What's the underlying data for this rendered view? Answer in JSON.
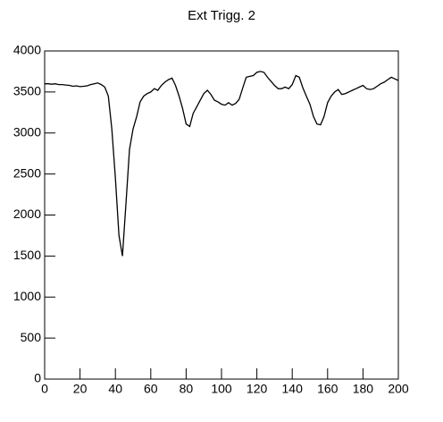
{
  "chart_data": {
    "type": "line",
    "title": "Ext Trigg. 2",
    "x": [
      0,
      2,
      4,
      6,
      8,
      10,
      12,
      14,
      16,
      18,
      20,
      22,
      24,
      26,
      28,
      30,
      32,
      34,
      36,
      38,
      40,
      42,
      44,
      46,
      48,
      50,
      52,
      54,
      56,
      58,
      60,
      62,
      64,
      66,
      68,
      70,
      72,
      74,
      76,
      78,
      80,
      82,
      84,
      86,
      88,
      90,
      92,
      94,
      96,
      98,
      100,
      102,
      104,
      106,
      108,
      110,
      112,
      114,
      116,
      118,
      120,
      122,
      124,
      126,
      128,
      130,
      132,
      134,
      136,
      138,
      140,
      142,
      144,
      146,
      148,
      150,
      152,
      154,
      156,
      158,
      160,
      162,
      164,
      166,
      168,
      170,
      172,
      174,
      176,
      178,
      180,
      182,
      184,
      186,
      188,
      190,
      192,
      194,
      196,
      198,
      200
    ],
    "series": [
      {
        "color": "#000000",
        "values": [
          3600,
          3600,
          3595,
          3600,
          3590,
          3590,
          3585,
          3580,
          3570,
          3575,
          3565,
          3570,
          3575,
          3590,
          3600,
          3610,
          3590,
          3560,
          3450,
          3050,
          2450,
          1750,
          1500,
          2150,
          2800,
          3050,
          3200,
          3380,
          3450,
          3480,
          3500,
          3540,
          3520,
          3580,
          3620,
          3650,
          3670,
          3580,
          3450,
          3300,
          3110,
          3080,
          3240,
          3320,
          3400,
          3480,
          3520,
          3470,
          3400,
          3380,
          3350,
          3340,
          3370,
          3340,
          3360,
          3410,
          3550,
          3680,
          3690,
          3700,
          3740,
          3750,
          3740,
          3680,
          3630,
          3580,
          3540,
          3540,
          3560,
          3540,
          3590,
          3700,
          3680,
          3550,
          3450,
          3350,
          3200,
          3110,
          3100,
          3200,
          3370,
          3450,
          3500,
          3530,
          3470,
          3480,
          3500,
          3520,
          3540,
          3560,
          3580,
          3540,
          3530,
          3540,
          3570,
          3600,
          3620,
          3650,
          3680,
          3660,
          3640
        ]
      }
    ],
    "xlim": [
      0,
      200
    ],
    "xticks": [
      0,
      20,
      40,
      60,
      80,
      100,
      120,
      140,
      160,
      180,
      200
    ],
    "ylim": [
      0,
      4000
    ],
    "yticks": [
      0,
      500,
      1000,
      1500,
      2000,
      2500,
      3000,
      3500,
      4000
    ]
  }
}
